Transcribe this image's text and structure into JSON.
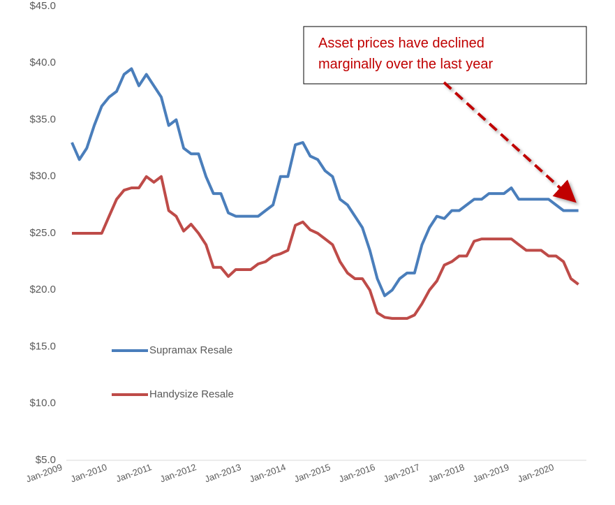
{
  "chart_data": {
    "type": "line",
    "categories": [
      "Jan-2009",
      null,
      null,
      null,
      null,
      null,
      "Jan-2010",
      null,
      null,
      null,
      null,
      null,
      "Jan-2011",
      null,
      null,
      null,
      null,
      null,
      "Jan-2012",
      null,
      null,
      null,
      null,
      null,
      "Jan-2013",
      null,
      null,
      null,
      null,
      null,
      "Jan-2014",
      null,
      null,
      null,
      null,
      null,
      "Jan-2015",
      null,
      null,
      null,
      null,
      null,
      "Jan-2016",
      null,
      null,
      null,
      null,
      null,
      "Jan-2017",
      null,
      null,
      null,
      null,
      null,
      "Jan-2018",
      null,
      null,
      null,
      null,
      null,
      "Jan-2019",
      null,
      null,
      null,
      null,
      null,
      "Jan-2020",
      null,
      null
    ],
    "series": [
      {
        "name": "Supramax Resale",
        "color": "#4a7ebb",
        "values": [
          33,
          31.5,
          32.5,
          34.5,
          36.2,
          37,
          37.5,
          39,
          39.5,
          38,
          39,
          38,
          37,
          34.5,
          35,
          32.5,
          32,
          32,
          30,
          28.5,
          28.5,
          26.8,
          26.5,
          26.5,
          26.5,
          26.5,
          27,
          27.5,
          30,
          30,
          32.8,
          33,
          31.8,
          31.5,
          30.5,
          30,
          28,
          27.5,
          26.5,
          25.5,
          23.5,
          21,
          19.5,
          20,
          21,
          21.5,
          21.5,
          24,
          25.5,
          26.5,
          26.3,
          27,
          27,
          27.5,
          28,
          28,
          28.5,
          28.5,
          28.5,
          29,
          28,
          28,
          28,
          28,
          28,
          27.5,
          27,
          27,
          27
        ]
      },
      {
        "name": "Handysize Resale",
        "color": "#be4b48",
        "values": [
          25,
          25,
          25,
          25,
          25,
          26.5,
          28,
          28.8,
          29,
          29,
          30,
          29.5,
          30,
          27,
          26.5,
          25.2,
          25.8,
          25,
          24,
          22,
          22,
          21.2,
          21.8,
          21.8,
          21.8,
          22.3,
          22.5,
          23,
          23.2,
          23.5,
          25.7,
          26,
          25.3,
          25,
          24.5,
          24,
          22.5,
          21.5,
          21,
          21,
          20,
          18,
          17.6,
          17.5,
          17.5,
          17.5,
          17.8,
          18.8,
          20,
          20.8,
          22.2,
          22.5,
          23,
          23,
          24.3,
          24.5,
          24.5,
          24.5,
          24.5,
          24.5,
          24,
          23.5,
          23.5,
          23.5,
          23,
          23,
          22.5,
          21,
          20.5
        ]
      }
    ],
    "ylim": [
      5,
      45
    ],
    "yticks": [
      {
        "value": 5,
        "label": "$5.0"
      },
      {
        "value": 10,
        "label": "$10.0"
      },
      {
        "value": 15,
        "label": "$15.0"
      },
      {
        "value": 20,
        "label": "$20.0"
      },
      {
        "value": 25,
        "label": "$25.0"
      },
      {
        "value": 30,
        "label": "$30.0"
      },
      {
        "value": 35,
        "label": "$35.0"
      },
      {
        "value": 40,
        "label": "$40.0"
      },
      {
        "value": 45,
        "label": "$45.0"
      }
    ],
    "grid": false,
    "legend": "left",
    "annotation": [
      "Asset prices have declined",
      "marginally over the last year"
    ]
  }
}
